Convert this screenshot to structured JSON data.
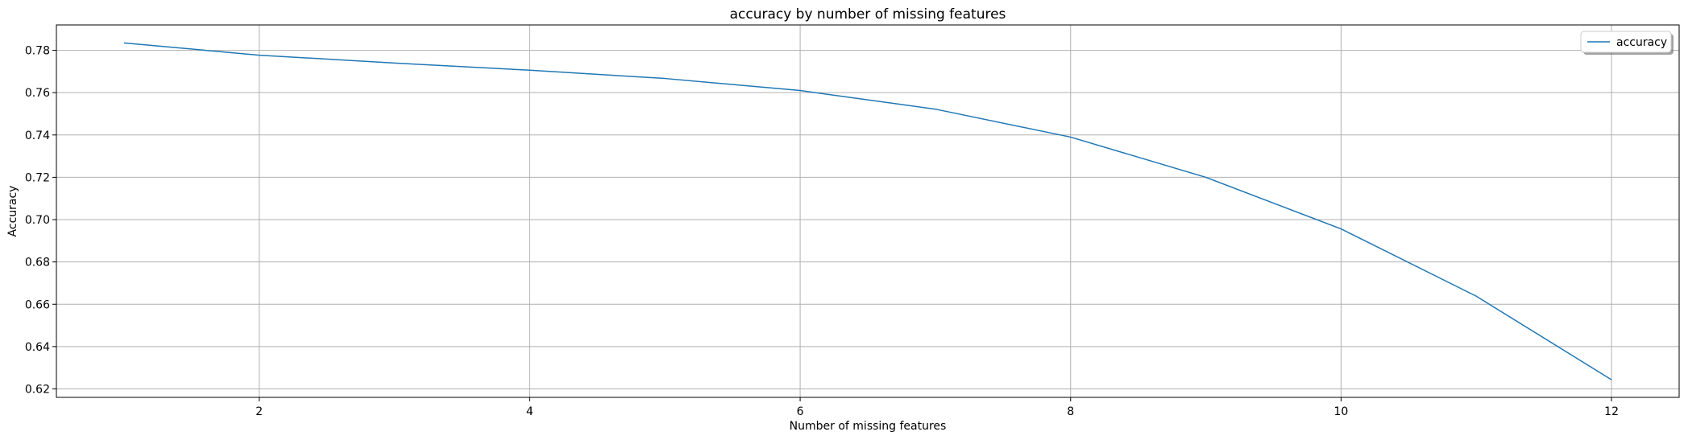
{
  "chart_data": {
    "type": "line",
    "title": "accuracy by number of missing features",
    "xlabel": "Number of missing features",
    "ylabel": "Accuracy",
    "xlim": [
      0.5,
      12.5
    ],
    "ylim": [
      0.616,
      0.792
    ],
    "xticks": [
      2,
      4,
      6,
      8,
      10,
      12
    ],
    "yticks": [
      0.62,
      0.64,
      0.66,
      0.68,
      0.7,
      0.72,
      0.74,
      0.76,
      0.78
    ],
    "grid": true,
    "legend_position": "top-right",
    "series": [
      {
        "name": "accuracy",
        "color": "#1f77b4",
        "x": [
          1,
          2,
          3,
          4,
          5,
          6,
          7,
          8,
          9,
          10,
          11,
          12
        ],
        "values": [
          0.7835,
          0.7777,
          0.774,
          0.7706,
          0.7667,
          0.761,
          0.7522,
          0.739,
          0.72,
          0.6956,
          0.6638,
          0.6243
        ]
      }
    ]
  }
}
